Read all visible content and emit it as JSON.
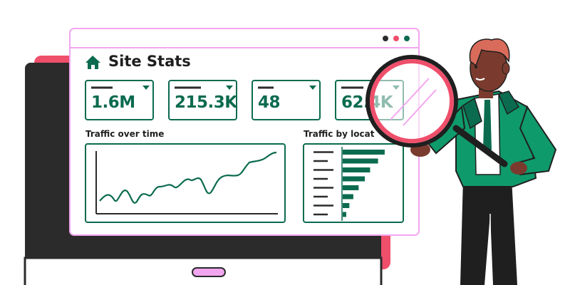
{
  "dashboard": {
    "title": "Site Stats",
    "stats": [
      {
        "value": "1.6M"
      },
      {
        "value": "215.3K"
      },
      {
        "value": "48"
      },
      {
        "value": "62.4K"
      }
    ],
    "panels": {
      "traffic_time_label": "Traffic over time",
      "traffic_location_label": "Traffic by location"
    },
    "location_bars": [
      0.95,
      0.8,
      0.62,
      0.5,
      0.36,
      0.24,
      0.15,
      0.08
    ]
  },
  "colors": {
    "accent_green": "#0b6b4f",
    "pink": "#ef4f6b",
    "laptop_dark": "#2b2b2b",
    "lavender": "#f3a6f0",
    "skin": "#7a3b2e",
    "hair": "#d96b5a"
  }
}
